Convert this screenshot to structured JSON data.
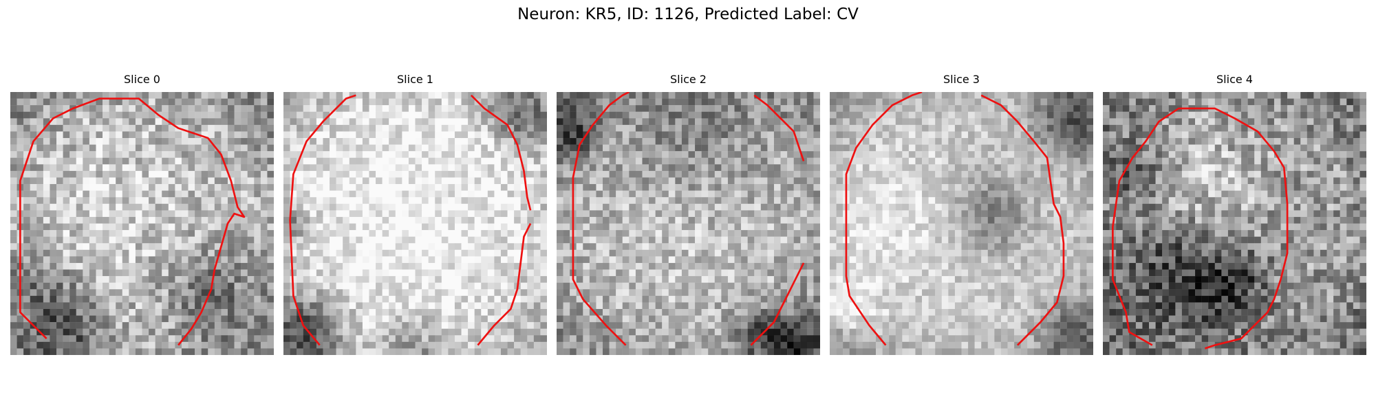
{
  "figure": {
    "title": "Neuron: KR5, ID: 1126, Predicted Label: CV"
  },
  "colors": {
    "contour": "#ee1111",
    "background": "#ffffff"
  },
  "panels": [
    {
      "title": "Slice 0",
      "seed": 11,
      "brightness": 0.7,
      "contrast": 0.22,
      "contour": [
        [
          5.5,
          37.5
        ],
        [
          1.5,
          33.5
        ],
        [
          1.5,
          20.5
        ],
        [
          1.5,
          13.5
        ],
        [
          3.5,
          7.5
        ],
        [
          6.5,
          4.0
        ],
        [
          9.5,
          2.5
        ],
        [
          13.5,
          1.0
        ],
        [
          19.5,
          1.0
        ],
        [
          22.5,
          3.5
        ],
        [
          25.5,
          5.5
        ],
        [
          30.0,
          7.0
        ],
        [
          32.0,
          9.5
        ],
        [
          33.5,
          13.5
        ],
        [
          34.5,
          17.5
        ],
        [
          35.5,
          19.0
        ],
        [
          34.0,
          18.5
        ],
        [
          33.0,
          20.0
        ],
        [
          32.0,
          23.5
        ],
        [
          31.0,
          27.0
        ],
        [
          30.5,
          30.0
        ],
        [
          29.0,
          33.5
        ],
        [
          27.5,
          36.0
        ],
        [
          25.5,
          38.5
        ]
      ],
      "dark_regions": [
        [
          8,
          35,
          4,
          0.35
        ],
        [
          30,
          30,
          5,
          0.25
        ],
        [
          4,
          28,
          3,
          0.2
        ]
      ],
      "light_regions": [
        [
          16,
          18,
          10,
          0.12
        ]
      ]
    },
    {
      "title": "Slice 1",
      "seed": 23,
      "brightness": 0.82,
      "contrast": 0.18,
      "contour": [
        [
          5.5,
          38.5
        ],
        [
          3.0,
          35.5
        ],
        [
          1.5,
          31.0
        ],
        [
          1.0,
          19.5
        ],
        [
          1.5,
          12.5
        ],
        [
          3.5,
          7.5
        ],
        [
          6.0,
          4.5
        ],
        [
          9.5,
          1.0
        ],
        [
          11.0,
          0.5
        ]
      ],
      "contour2": [
        [
          28.5,
          0.5
        ],
        [
          30.5,
          2.5
        ],
        [
          34.0,
          5.0
        ],
        [
          35.5,
          8.0
        ],
        [
          36.5,
          12.0
        ],
        [
          37.0,
          16.0
        ],
        [
          37.5,
          18.0
        ]
      ],
      "contour3": [
        [
          37.5,
          20.0
        ],
        [
          36.5,
          22.0
        ],
        [
          36.0,
          26.0
        ],
        [
          35.5,
          30.0
        ],
        [
          34.5,
          33.0
        ],
        [
          32.0,
          35.5
        ],
        [
          29.5,
          38.5
        ]
      ],
      "dark_regions": [
        [
          3,
          36,
          4,
          0.45
        ],
        [
          35,
          3,
          3,
          0.35
        ],
        [
          19,
          38,
          3,
          0.25
        ],
        [
          1,
          20,
          2,
          0.3
        ]
      ],
      "light_regions": [
        [
          18,
          18,
          14,
          0.15
        ]
      ]
    },
    {
      "title": "Slice 2",
      "seed": 37,
      "brightness": 0.7,
      "contrast": 0.2,
      "contour": [
        [
          10.5,
          38.5
        ],
        [
          7.5,
          35.5
        ],
        [
          4.0,
          31.5
        ],
        [
          2.5,
          28.5
        ],
        [
          2.5,
          20.0
        ],
        [
          2.5,
          13.0
        ],
        [
          3.5,
          8.0
        ],
        [
          5.5,
          5.0
        ],
        [
          8.0,
          2.0
        ],
        [
          10.0,
          0.5
        ],
        [
          11.0,
          0.0
        ]
      ],
      "contour2": [
        [
          30.0,
          0.5
        ],
        [
          32.0,
          2.0
        ],
        [
          34.0,
          4.0
        ],
        [
          36.0,
          6.0
        ],
        [
          37.0,
          9.0
        ],
        [
          37.5,
          10.5
        ]
      ],
      "contour3": [
        [
          37.5,
          26.0
        ],
        [
          36.0,
          29.0
        ],
        [
          34.5,
          32.0
        ],
        [
          33.0,
          35.0
        ],
        [
          31.0,
          37.0
        ],
        [
          29.5,
          38.5
        ]
      ],
      "dark_regions": [
        [
          2,
          6,
          3,
          0.35
        ],
        [
          36,
          38,
          3,
          0.4
        ],
        [
          20,
          4,
          8,
          0.2
        ],
        [
          30,
          36,
          3,
          0.3
        ]
      ],
      "light_regions": [
        [
          18,
          20,
          10,
          0.08
        ]
      ]
    },
    {
      "title": "Slice 3",
      "seed": 53,
      "brightness": 0.78,
      "contrast": 0.14,
      "contour": [
        [
          8.5,
          38.5
        ],
        [
          6.0,
          35.5
        ],
        [
          3.0,
          31.0
        ],
        [
          2.5,
          28.0
        ],
        [
          2.5,
          19.0
        ],
        [
          2.5,
          12.5
        ],
        [
          4.0,
          8.5
        ],
        [
          6.5,
          5.0
        ],
        [
          9.5,
          2.0
        ],
        [
          12.5,
          0.5
        ],
        [
          14.0,
          0.0
        ]
      ],
      "contour2": [
        [
          23.0,
          0.5
        ],
        [
          26.0,
          2.0
        ],
        [
          28.5,
          4.5
        ],
        [
          31.0,
          7.5
        ],
        [
          33.0,
          10.0
        ],
        [
          33.5,
          13.5
        ],
        [
          34.0,
          17.0
        ],
        [
          35.0,
          19.0
        ],
        [
          35.5,
          23.0
        ],
        [
          35.5,
          28.0
        ],
        [
          34.5,
          32.0
        ],
        [
          32.0,
          35.0
        ],
        [
          28.5,
          38.5
        ]
      ],
      "dark_regions": [
        [
          24,
          18,
          4,
          0.3
        ],
        [
          36,
          4,
          4,
          0.35
        ],
        [
          36,
          36,
          3,
          0.35
        ],
        [
          2,
          38,
          2,
          0.1
        ]
      ],
      "light_regions": [
        [
          9,
          20,
          8,
          0.12
        ],
        [
          2,
          32,
          3,
          0.25
        ]
      ]
    },
    {
      "title": "Slice 4",
      "seed": 71,
      "brightness": 0.62,
      "contrast": 0.24,
      "contour": [
        [
          7.5,
          38.5
        ],
        [
          4.0,
          36.5
        ],
        [
          3.5,
          33.5
        ],
        [
          1.5,
          28.5
        ],
        [
          1.5,
          20.5
        ],
        [
          2.5,
          13.5
        ],
        [
          4.5,
          10.0
        ],
        [
          6.5,
          7.5
        ],
        [
          8.5,
          4.5
        ],
        [
          11.5,
          2.5
        ],
        [
          17.0,
          2.5
        ],
        [
          20.0,
          4.0
        ],
        [
          23.5,
          6.0
        ],
        [
          26.0,
          9.0
        ],
        [
          27.5,
          11.5
        ],
        [
          28.0,
          17.0
        ],
        [
          28.0,
          24.5
        ],
        [
          27.0,
          28.5
        ],
        [
          26.0,
          31.5
        ],
        [
          25.0,
          33.5
        ],
        [
          23.0,
          35.5
        ],
        [
          21.0,
          37.5
        ],
        [
          17.0,
          38.5
        ],
        [
          15.5,
          39.0
        ]
      ],
      "dark_regions": [
        [
          8,
          27,
          6,
          0.25
        ],
        [
          16,
          30,
          6,
          0.25
        ],
        [
          4,
          12,
          3,
          0.25
        ],
        [
          20,
          28,
          3,
          0.2
        ]
      ],
      "light_regions": [
        [
          16,
          14,
          6,
          0.15
        ]
      ]
    }
  ]
}
